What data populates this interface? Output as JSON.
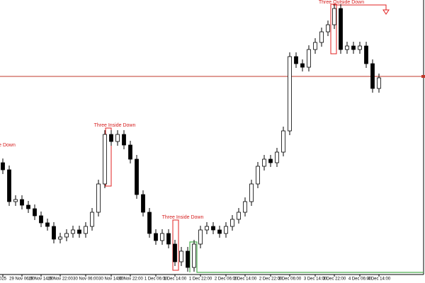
{
  "chart_data": {
    "type": "candlestick",
    "categories": [
      "025",
      null,
      null,
      "29 Nov 06:00",
      null,
      null,
      "29 Nov 14:00",
      null,
      null,
      "29 Nov 22:00",
      null,
      null,
      null,
      "30 Nov 06:00",
      null,
      null,
      null,
      "30 Nov 14:00",
      null,
      null,
      "30 Nov 22:00",
      null,
      null,
      null,
      "1 Dec 06:00",
      null,
      null,
      "1 Dec 14:00",
      null,
      null,
      null,
      "1 Dec 22:00",
      null,
      null,
      null,
      "2 Dec 06:00",
      null,
      null,
      "2 Dec 14:00",
      null,
      null,
      null,
      "2 Dec 22:00",
      null,
      null,
      "3 Dec 06:00",
      null,
      null,
      null,
      "3 Dec 14:00",
      null,
      null,
      "3 Dec 22:00",
      null,
      null,
      null,
      "4 Dec 06:00",
      null,
      null,
      "4 Dec 14:00"
    ],
    "open": [
      170,
      160,
      115,
      118,
      110,
      105,
      95,
      85,
      80,
      62,
      65,
      70,
      75,
      70,
      80,
      100,
      140,
      210,
      200,
      210,
      195,
      175,
      125,
      100,
      70,
      60,
      70,
      55,
      30,
      45,
      22,
      55,
      75,
      80,
      75,
      70,
      80,
      90,
      100,
      115,
      140,
      165,
      175,
      170,
      185,
      215,
      320,
      310,
      305,
      330,
      340,
      355,
      365,
      388,
      330,
      335,
      330,
      335,
      310,
      275
    ],
    "high": [
      176,
      166,
      124,
      124,
      116,
      111,
      101,
      91,
      86,
      71,
      76,
      81,
      81,
      86,
      106,
      146,
      216,
      216,
      216,
      216,
      201,
      181,
      131,
      106,
      76,
      76,
      76,
      61,
      51,
      51,
      61,
      81,
      86,
      86,
      81,
      86,
      96,
      106,
      121,
      146,
      171,
      181,
      181,
      191,
      221,
      326,
      326,
      316,
      336,
      346,
      361,
      371,
      394,
      394,
      341,
      341,
      341,
      341,
      316,
      296
    ],
    "low": [
      154,
      109,
      109,
      104,
      99,
      89,
      79,
      74,
      56,
      56,
      59,
      64,
      64,
      64,
      74,
      94,
      134,
      194,
      194,
      189,
      169,
      119,
      94,
      64,
      54,
      54,
      49,
      24,
      24,
      16,
      16,
      49,
      69,
      69,
      64,
      64,
      74,
      84,
      94,
      109,
      134,
      159,
      164,
      164,
      179,
      209,
      304,
      299,
      299,
      324,
      334,
      349,
      359,
      324,
      324,
      324,
      324,
      304,
      269,
      269
    ],
    "close": [
      160,
      115,
      118,
      110,
      105,
      95,
      85,
      80,
      62,
      65,
      70,
      75,
      70,
      80,
      100,
      140,
      210,
      200,
      210,
      195,
      175,
      125,
      100,
      70,
      60,
      70,
      55,
      30,
      45,
      22,
      55,
      75,
      80,
      75,
      70,
      80,
      90,
      100,
      115,
      140,
      165,
      175,
      170,
      185,
      215,
      320,
      310,
      305,
      330,
      340,
      355,
      365,
      388,
      330,
      335,
      330,
      335,
      310,
      275,
      290
    ],
    "up_color": "#ffffff",
    "down_color": "#000000",
    "ylim": [
      0,
      400
    ],
    "hline": {
      "value": 292,
      "color": "#c0392b"
    },
    "annotations": [
      "e Down",
      "Three Inside Down",
      "Three Inside Down",
      "Three Outside Down"
    ]
  }
}
